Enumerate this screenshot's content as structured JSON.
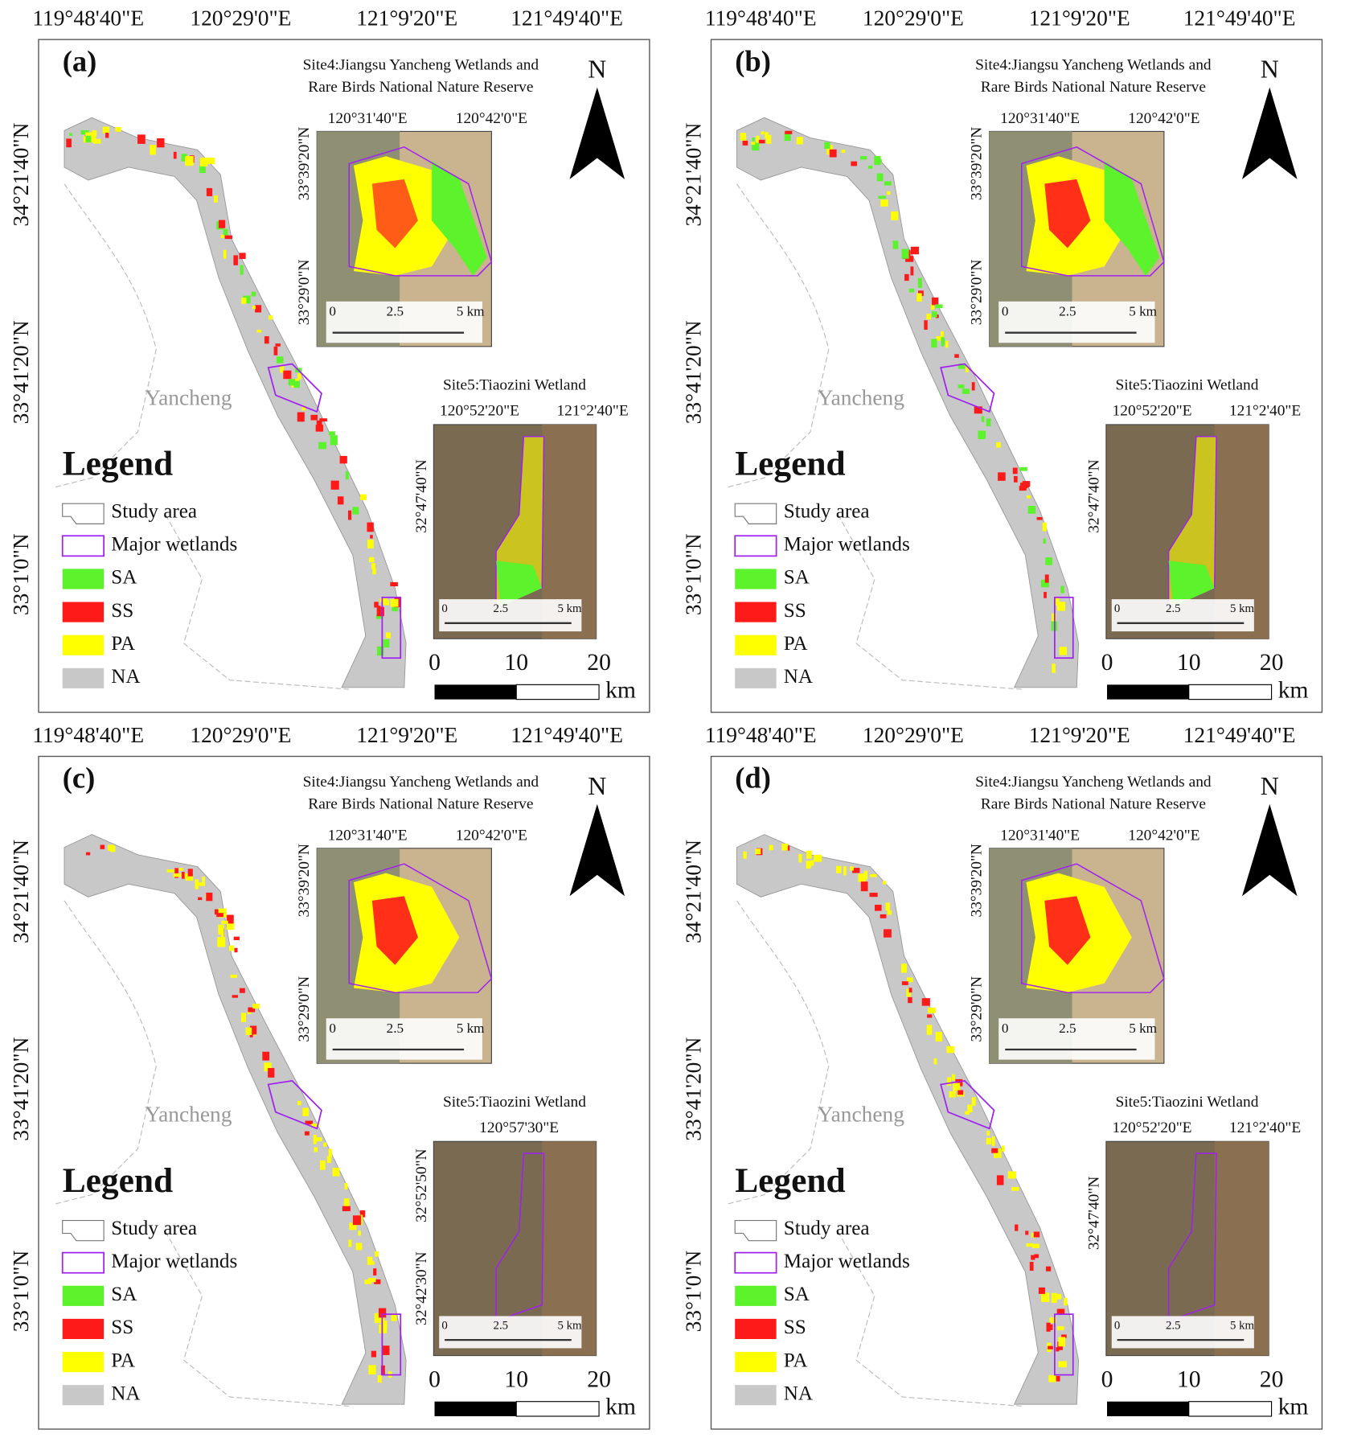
{
  "panels": [
    {
      "label": "(a)",
      "lon_labels": [
        "119°48'40\"E",
        "120°29'0\"E",
        "121°9'20\"E",
        "121°49'40\"E"
      ],
      "lat_labels": [
        "34°21'40\"N",
        "33°41'20\"N",
        "33°1'0\"N"
      ],
      "north": "N",
      "city": "Yancheng",
      "site4": {
        "title": [
          "Site4:Jiangsu Yancheng Wetlands and",
          "Rare Birds National Nature Reserve"
        ],
        "lon_labels": [
          "120°31'40\"E",
          "120°42'0\"E"
        ],
        "lat_labels": [
          "33°39'20\"N",
          "33°29'0\"N"
        ],
        "scale_labels": [
          "0",
          "2.5",
          "5 km"
        ]
      },
      "site5": {
        "title": [
          "Site5:Tiaozini Wetland"
        ],
        "lon_labels": [
          "120°52'20\"E",
          "121°2'40\"E"
        ],
        "lat_labels": [
          "32°47'40\"N"
        ],
        "scale_labels": [
          "0",
          "2.5",
          "5 km"
        ]
      },
      "legend": {
        "title": "Legend",
        "items": [
          "Study area",
          "Major wetlands",
          "SA",
          "SS",
          "PA",
          "NA"
        ]
      },
      "scale_labels": [
        "0",
        "10",
        "20"
      ],
      "scale_unit": "km"
    },
    {
      "label": "(b)",
      "lon_labels": [
        "119°48'40\"E",
        "120°29'0\"E",
        "121°9'20\"E",
        "121°49'40\"E"
      ],
      "lat_labels": [
        "34°21'40\"N",
        "33°41'20\"N",
        "33°1'0\"N"
      ],
      "north": "N",
      "city": "Yancheng",
      "site4": {
        "title": [
          "Site4:Jiangsu Yancheng Wetlands and",
          "Rare Birds National Nature Reserve"
        ],
        "lon_labels": [
          "120°31'40\"E",
          "120°42'0\"E"
        ],
        "lat_labels": [
          "33°39'20\"N",
          "33°29'0\"N"
        ],
        "scale_labels": [
          "0",
          "2.5",
          "5 km"
        ]
      },
      "site5": {
        "title": [
          "Site5:Tiaozini Wetland"
        ],
        "lon_labels": [
          "120°52'20\"E",
          "121°2'40\"E"
        ],
        "lat_labels": [
          "32°47'40\"N"
        ],
        "scale_labels": [
          "0",
          "2.5",
          "5 km"
        ]
      },
      "legend": {
        "title": "Legend",
        "items": [
          "Study area",
          "Major wetlands",
          "SA",
          "SS",
          "PA",
          "NA"
        ]
      },
      "scale_labels": [
        "0",
        "10",
        "20"
      ],
      "scale_unit": "km"
    },
    {
      "label": "(c)",
      "lon_labels": [
        "119°48'40\"E",
        "120°29'0\"E",
        "121°9'20\"E",
        "121°49'40\"E"
      ],
      "lat_labels": [
        "34°21'40\"N",
        "33°41'20\"N",
        "33°1'0\"N"
      ],
      "north": "N",
      "city": "Yancheng",
      "site4": {
        "title": [
          "Site4:Jiangsu Yancheng Wetlands and",
          "Rare Birds National Nature Reserve"
        ],
        "lon_labels": [
          "120°31'40\"E",
          "120°42'0\"E"
        ],
        "lat_labels": [
          "33°39'20\"N",
          "33°29'0\"N"
        ],
        "scale_labels": [
          "0",
          "2.5",
          "5 km"
        ]
      },
      "site5": {
        "title": [
          "Site5:Tiaozini Wetland"
        ],
        "lon_labels": [
          "120°57'30\"E"
        ],
        "lat_labels": [
          "32°52'50\"N",
          "32°42'30\"N"
        ],
        "scale_labels": [
          "0",
          "2.5",
          "5 km"
        ]
      },
      "legend": {
        "title": "Legend",
        "items": [
          "Study area",
          "Major wetlands",
          "SA",
          "SS",
          "PA",
          "NA"
        ]
      },
      "scale_labels": [
        "0",
        "10",
        "20"
      ],
      "scale_unit": "km"
    },
    {
      "label": "(d)",
      "lon_labels": [
        "119°48'40\"E",
        "120°29'0\"E",
        "121°9'20\"E",
        "121°49'40\"E"
      ],
      "lat_labels": [
        "34°21'40\"N",
        "33°41'20\"N",
        "33°1'0\"N"
      ],
      "north": "N",
      "city": "Yancheng",
      "site4": {
        "title": [
          "Site4:Jiangsu Yancheng Wetlands and",
          "Rare Birds National Nature Reserve"
        ],
        "lon_labels": [
          "120°31'40\"E",
          "120°42'0\"E"
        ],
        "lat_labels": [
          "33°39'20\"N",
          "33°29'0\"N"
        ],
        "scale_labels": [
          "0",
          "2.5",
          "5 km"
        ]
      },
      "site5": {
        "title": [
          "Site5:Tiaozini Wetland"
        ],
        "lon_labels": [
          "120°52'20\"E",
          "121°2'40\"E"
        ],
        "lat_labels": [
          "32°47'40\"N"
        ],
        "scale_labels": [
          "0",
          "2.5",
          "5 km"
        ]
      },
      "legend": {
        "title": "Legend",
        "items": [
          "Study area",
          "Major wetlands",
          "SA",
          "SS",
          "PA",
          "NA"
        ]
      },
      "scale_labels": [
        "0",
        "10",
        "20"
      ],
      "scale_unit": "km"
    }
  ]
}
